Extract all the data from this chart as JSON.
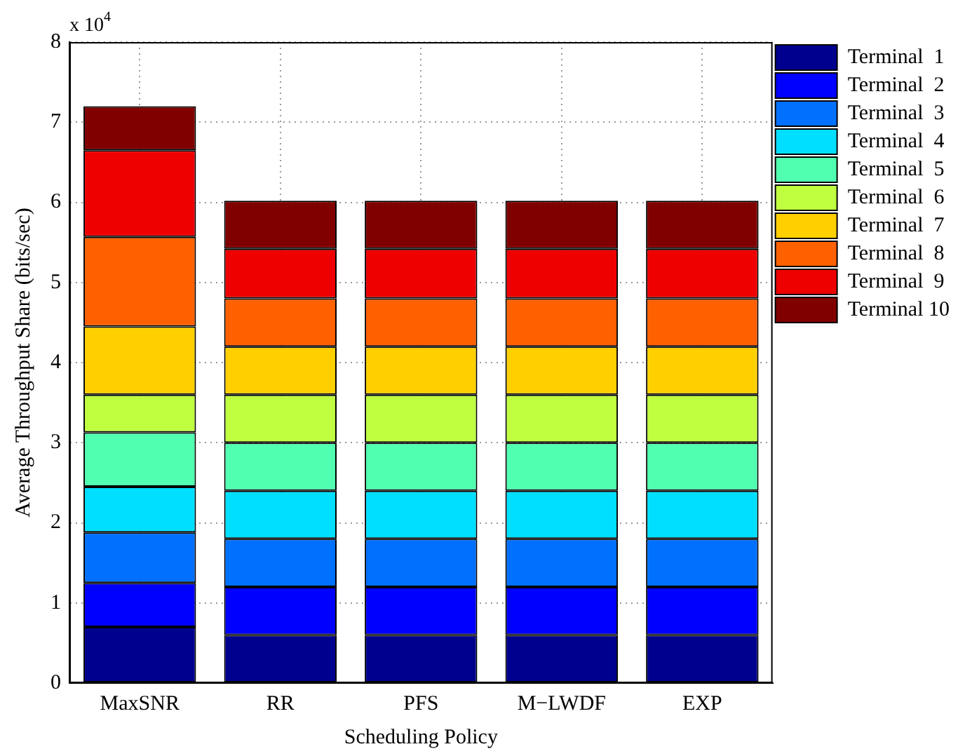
{
  "chart_data": {
    "type": "bar",
    "stacked": true,
    "xlabel": "Scheduling Policy",
    "ylabel": "Average Throughput Share (bits/sec)",
    "annotations": [
      "x 10$^{4}$"
    ],
    "categories": [
      "MaxSNR",
      "RR",
      "PFS",
      "M−LWDF",
      "EXP"
    ],
    "ylim": [
      0,
      8
    ],
    "yticks": [
      0,
      1,
      2,
      3,
      4,
      5,
      6,
      7,
      8
    ],
    "grid": true,
    "legend": "right",
    "series": [
      {
        "name": "Terminal  1",
        "color": "#00008f",
        "values": [
          0.7,
          0.6,
          0.6,
          0.6,
          0.6
        ]
      },
      {
        "name": "Terminal  2",
        "color": "#0000ff",
        "values": [
          0.55,
          0.6,
          0.6,
          0.6,
          0.6
        ]
      },
      {
        "name": "Terminal  3",
        "color": "#0070ff",
        "values": [
          0.63,
          0.6,
          0.6,
          0.6,
          0.6
        ]
      },
      {
        "name": "Terminal  4",
        "color": "#00dfff",
        "values": [
          0.57,
          0.6,
          0.6,
          0.6,
          0.6
        ]
      },
      {
        "name": "Terminal  5",
        "color": "#50ffaf",
        "values": [
          0.68,
          0.6,
          0.6,
          0.6,
          0.6
        ]
      },
      {
        "name": "Terminal  6",
        "color": "#bfff40",
        "values": [
          0.47,
          0.6,
          0.6,
          0.6,
          0.6
        ]
      },
      {
        "name": "Terminal  7",
        "color": "#ffcf00",
        "values": [
          0.85,
          0.6,
          0.6,
          0.6,
          0.6
        ]
      },
      {
        "name": "Terminal  8",
        "color": "#ff6000",
        "values": [
          1.12,
          0.6,
          0.6,
          0.6,
          0.6
        ]
      },
      {
        "name": "Terminal  9",
        "color": "#ef0000",
        "values": [
          1.08,
          0.62,
          0.62,
          0.62,
          0.62
        ]
      },
      {
        "name": "Terminal 10",
        "color": "#800000",
        "values": [
          0.55,
          0.6,
          0.6,
          0.6,
          0.6
        ]
      }
    ]
  }
}
